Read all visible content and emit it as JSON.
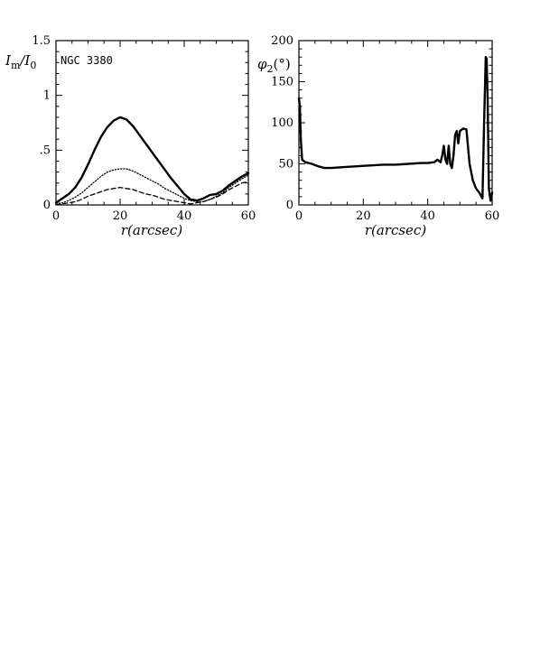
{
  "chart_data": [
    {
      "type": "line",
      "title": "",
      "annotation": "NGC 3380",
      "xlabel": "r(arcsec)",
      "ylabel": "I_m/I_0",
      "xlim": [
        0,
        60
      ],
      "ylim": [
        0,
        1.5
      ],
      "xticks": [
        "0",
        "20",
        "40",
        "60"
      ],
      "yticks": [
        "0",
        ".5",
        "1",
        "1.5"
      ],
      "grid": false,
      "series": [
        {
          "style": "solid-thick",
          "x": [
            0,
            2,
            4,
            6,
            8,
            10,
            12,
            14,
            16,
            18,
            20,
            22,
            24,
            26,
            28,
            30,
            32,
            34,
            36,
            38,
            40,
            42,
            44,
            46,
            48,
            50,
            52,
            54,
            56,
            58,
            60
          ],
          "y": [
            0.02,
            0.06,
            0.1,
            0.16,
            0.25,
            0.37,
            0.5,
            0.62,
            0.71,
            0.77,
            0.8,
            0.78,
            0.72,
            0.64,
            0.56,
            0.48,
            0.4,
            0.32,
            0.24,
            0.17,
            0.1,
            0.05,
            0.04,
            0.06,
            0.09,
            0.1,
            0.13,
            0.18,
            0.22,
            0.26,
            0.29
          ]
        },
        {
          "style": "dotted",
          "x": [
            0,
            2,
            4,
            6,
            8,
            10,
            12,
            14,
            16,
            18,
            20,
            22,
            24,
            26,
            28,
            30,
            32,
            34,
            36,
            38,
            40,
            42,
            44,
            46,
            48,
            50,
            52,
            54,
            56,
            58,
            60
          ],
          "y": [
            0.01,
            0.02,
            0.04,
            0.07,
            0.11,
            0.16,
            0.21,
            0.26,
            0.3,
            0.32,
            0.33,
            0.33,
            0.31,
            0.28,
            0.25,
            0.22,
            0.19,
            0.15,
            0.12,
            0.09,
            0.06,
            0.04,
            0.03,
            0.03,
            0.05,
            0.08,
            0.11,
            0.16,
            0.2,
            0.24,
            0.27
          ]
        },
        {
          "style": "dashed",
          "x": [
            0,
            2,
            4,
            6,
            8,
            10,
            12,
            14,
            16,
            18,
            20,
            22,
            24,
            26,
            28,
            30,
            32,
            34,
            36,
            38,
            40,
            42,
            44,
            46,
            48,
            50,
            52,
            54,
            56,
            58,
            60
          ],
          "y": [
            0.0,
            0.01,
            0.02,
            0.03,
            0.05,
            0.08,
            0.1,
            0.12,
            0.14,
            0.15,
            0.16,
            0.15,
            0.14,
            0.12,
            0.1,
            0.09,
            0.07,
            0.05,
            0.04,
            0.03,
            0.02,
            0.01,
            0.02,
            0.03,
            0.05,
            0.07,
            0.1,
            0.14,
            0.17,
            0.2,
            0.21
          ]
        }
      ]
    },
    {
      "type": "line",
      "title": "",
      "xlabel": "r(arcsec)",
      "ylabel": "φ2(°)",
      "xlim": [
        0,
        60
      ],
      "ylim": [
        0,
        200
      ],
      "xticks": [
        "0",
        "20",
        "40",
        "60"
      ],
      "yticks": [
        "0",
        "50",
        "100",
        "150",
        "200"
      ],
      "grid": false,
      "series": [
        {
          "style": "solid-thick",
          "x": [
            0,
            0.3,
            0.6,
            1,
            2,
            4,
            6,
            8,
            10,
            14,
            18,
            22,
            26,
            30,
            34,
            38,
            40,
            42,
            43,
            44,
            44.5,
            45,
            45.5,
            46,
            46.5,
            47,
            47.5,
            48,
            48.5,
            49,
            49.5,
            50,
            51,
            52,
            53,
            54,
            55,
            56,
            57,
            57.5,
            58,
            58.3,
            58.6,
            59,
            59.5,
            60
          ],
          "y": [
            130,
            120,
            80,
            55,
            52,
            50,
            47,
            45,
            45,
            46,
            47,
            48,
            49,
            49,
            50,
            51,
            51,
            52,
            55,
            52,
            60,
            72,
            55,
            50,
            72,
            50,
            45,
            60,
            85,
            90,
            75,
            90,
            93,
            92,
            50,
            30,
            20,
            15,
            8,
            100,
            180,
            178,
            130,
            20,
            5,
            15
          ]
        }
      ]
    }
  ]
}
